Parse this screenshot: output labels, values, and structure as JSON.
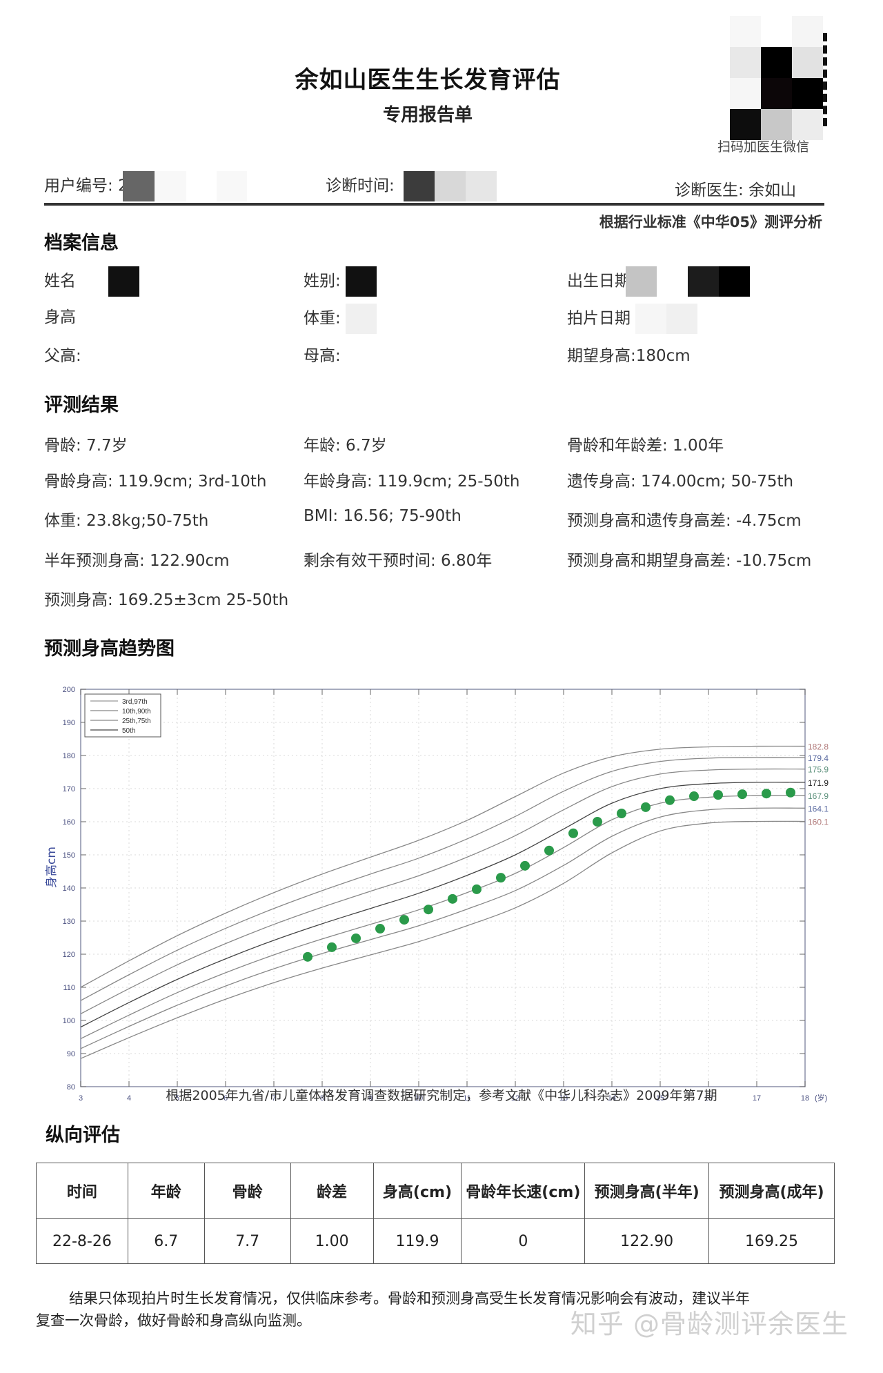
{
  "header": {
    "title": "余如山医生生长发育评估",
    "subtitle": "专用报告单",
    "qr_caption": "扫码加医生微信",
    "user_id_label": "用户编号:",
    "user_id_value": "2",
    "diagnosis_time_label": "诊断时间:",
    "doctor_label": "诊断医生:",
    "doctor_value": "余如山",
    "standard_note": "根据行业标准《中华05》测评分析"
  },
  "profile": {
    "section_title": "档案信息",
    "name_label": "姓名",
    "gender_label": "姓别:",
    "birth_label": "出生日期",
    "height_label": "身高",
    "weight_label": "体重:",
    "xray_date_label": "拍片日期",
    "father_height_label": "父高:",
    "mother_height_label": "母高:",
    "expected_height_label": "期望身高:",
    "expected_height_value": "180cm"
  },
  "results": {
    "section_title": "评测结果",
    "rows": [
      [
        "骨龄:  7.7岁",
        "年龄: 6.7岁",
        "骨龄和年龄差: 1.00年"
      ],
      [
        "骨龄身高: 119.9cm; 3rd-10th",
        "年龄身高:  119.9cm; 25-50th",
        "遗传身高: 174.00cm;   50-75th"
      ],
      [
        "体重:  23.8kg;50-75th",
        "BMI:  16.56; 75-90th",
        "预测身高和遗传身高差:  -4.75cm"
      ],
      [
        "半年预测身高: 122.90cm",
        "剩余有效干预时间:  6.80年",
        "预测身高和期望身高差:  -10.75cm"
      ],
      [
        "预测身高:  169.25±3cm    25-50th",
        "",
        ""
      ]
    ]
  },
  "trend": {
    "section_title": "预测身高趋势图",
    "caption": "根据2005年九省/市儿童体格发育调查数据研究制定，参考文献《中华儿科杂志》2009年第7期"
  },
  "chart_data": {
    "type": "line",
    "title": "预测身高趋势图",
    "xlabel": "(岁)",
    "ylabel": "身高cm",
    "xlim": [
      3,
      18
    ],
    "ylim": [
      80,
      200
    ],
    "xticks": [
      3,
      4,
      5,
      6,
      7,
      8,
      9,
      10,
      11,
      12,
      13,
      14,
      15,
      16,
      17,
      18
    ],
    "yticks": [
      80,
      90,
      100,
      110,
      120,
      130,
      140,
      150,
      160,
      170,
      180,
      190,
      200
    ],
    "grid": true,
    "legend_position": "upper-left",
    "legend": [
      "3rd,97th",
      "10th,90th",
      "25th,75th",
      "50th"
    ],
    "x": [
      3,
      4,
      5,
      6,
      7,
      8,
      9,
      10,
      11,
      12,
      13,
      14,
      15,
      16,
      17,
      18
    ],
    "series": [
      {
        "name": "97th",
        "color": "#b07878",
        "end_label": "182.8",
        "values": [
          110.0,
          118.0,
          125.6,
          132.4,
          138.6,
          144.2,
          149.3,
          154.4,
          160.4,
          167.6,
          174.7,
          179.6,
          181.9,
          182.6,
          182.8,
          182.8
        ]
      },
      {
        "name": "90th",
        "color": "#5a6aa0",
        "end_label": "179.4",
        "values": [
          106.0,
          113.8,
          121.2,
          127.8,
          133.8,
          139.2,
          144.2,
          149.0,
          154.8,
          161.6,
          169.2,
          175.2,
          178.2,
          179.2,
          179.4,
          179.4
        ]
      },
      {
        "name": "75th",
        "color": "#5a8f7a",
        "end_label": "175.9",
        "values": [
          102.0,
          109.6,
          116.8,
          123.2,
          129.0,
          134.2,
          139.0,
          143.7,
          149.3,
          155.8,
          163.6,
          170.6,
          174.4,
          175.6,
          175.9,
          175.9
        ]
      },
      {
        "name": "50th",
        "color": "#222222",
        "end_label": "171.9",
        "values": [
          98.0,
          105.4,
          112.4,
          118.6,
          124.2,
          129.2,
          133.8,
          138.4,
          143.8,
          150.0,
          157.8,
          165.6,
          170.0,
          171.5,
          171.9,
          171.9
        ]
      },
      {
        "name": "25th",
        "color": "#5a8f7a",
        "end_label": "167.9",
        "values": [
          94.5,
          101.6,
          108.4,
          114.4,
          119.8,
          124.6,
          129.0,
          133.4,
          138.6,
          144.4,
          152.2,
          160.6,
          165.6,
          167.4,
          167.9,
          167.9
        ]
      },
      {
        "name": "10th",
        "color": "#5a6aa0",
        "end_label": "164.1",
        "values": [
          91.5,
          98.2,
          104.6,
          110.4,
          115.6,
          120.2,
          124.4,
          128.6,
          133.6,
          139.2,
          146.8,
          155.6,
          161.4,
          163.6,
          164.1,
          164.1
        ]
      },
      {
        "name": "3rd",
        "color": "#b07878",
        "end_label": "160.1",
        "values": [
          88.5,
          94.8,
          100.8,
          106.4,
          111.4,
          115.8,
          119.8,
          123.8,
          128.6,
          134.0,
          141.4,
          150.6,
          157.2,
          159.6,
          160.1,
          160.1
        ]
      },
      {
        "name": "预测身高",
        "color": "#2a9a4a",
        "type": "scatter",
        "x": [
          7.7,
          8.2,
          8.7,
          9.2,
          9.7,
          10.2,
          10.7,
          11.2,
          11.7,
          12.2,
          12.7,
          13.2,
          13.7,
          14.2,
          14.7,
          15.2,
          15.7,
          16.2,
          16.7,
          17.2,
          17.7
        ],
        "values": [
          119.2,
          122.1,
          124.8,
          127.7,
          130.4,
          133.5,
          136.7,
          139.6,
          143.1,
          146.7,
          151.3,
          156.5,
          160.0,
          162.5,
          164.4,
          166.5,
          167.7,
          168.1,
          168.3,
          168.5,
          168.8
        ]
      }
    ]
  },
  "longitudinal": {
    "section_title": "纵向评估",
    "columns": [
      "时间",
      "年龄",
      "骨龄",
      "龄差",
      "身高(cm)",
      "骨龄年长速(cm)",
      "预测身高(半年)",
      "预测身高(成年)"
    ],
    "rows": [
      [
        "22-8-26",
        "6.7",
        "7.7",
        "1.00",
        "119.9",
        "0",
        "122.90",
        "169.25"
      ]
    ]
  },
  "footer": {
    "line1": "结果只体现拍片时生长发育情况，仅供临床参考。骨龄和预测身高受生长发育情况影响会有波动，建议半年",
    "line2": "复查一次骨龄，做好骨龄和身高纵向监测。",
    "watermark": "知乎 @骨龄测评余医生"
  }
}
